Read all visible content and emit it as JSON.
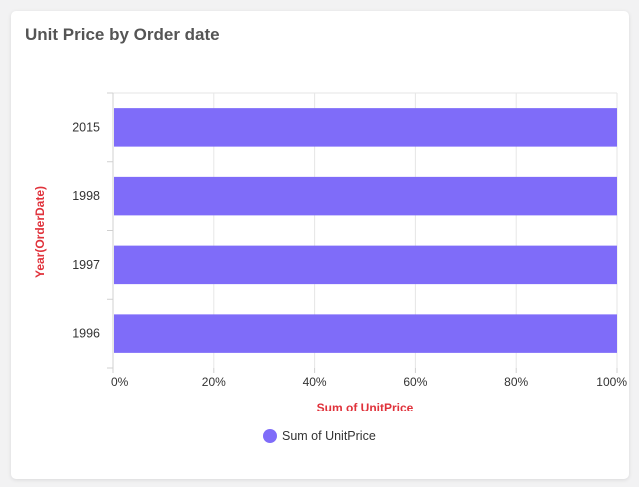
{
  "card": {
    "title": "Unit Price by Order date"
  },
  "colors": {
    "bar": "#7f6cf9",
    "axis_title": "#e0323b",
    "grid": "#e6e6e6",
    "axis_line": "#d0d0d0",
    "tick_text": "#333333"
  },
  "chart_data": {
    "type": "bar",
    "orientation": "horizontal",
    "stacked_percent": true,
    "categories": [
      "2015",
      "1998",
      "1997",
      "1996"
    ],
    "series": [
      {
        "name": "Sum of UnitPrice",
        "values": [
          100,
          100,
          100,
          100
        ]
      }
    ],
    "xlabel": "Sum of UnitPrice",
    "ylabel": "Year(OrderDate)",
    "xlim": [
      0,
      100
    ],
    "x_ticks": [
      "0%",
      "20%",
      "40%",
      "60%",
      "80%",
      "100%"
    ],
    "grid": true,
    "legend": {
      "position": "bottom-center",
      "label": "Sum of UnitPrice"
    }
  }
}
